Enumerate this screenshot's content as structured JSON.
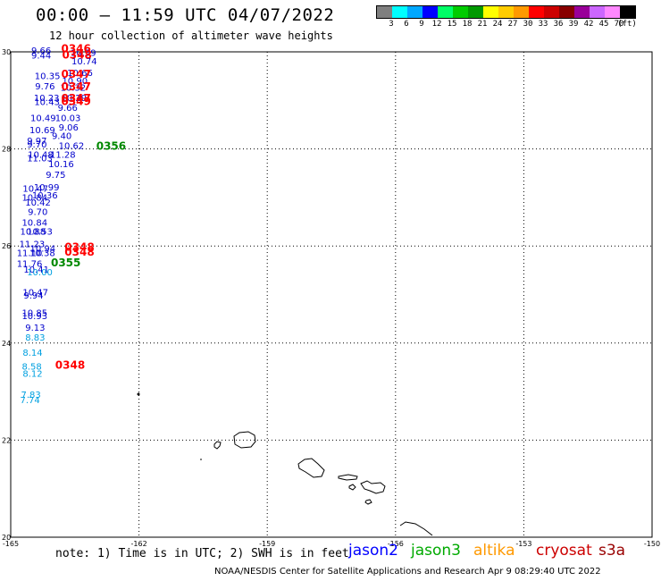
{
  "title": "00:00 – 11:59 UTC 04/07/2022",
  "subtitle": "12 hour collection of altimeter wave heights",
  "legend": {
    "colors": [
      "#7f7f7f",
      "#00ffff",
      "#00a8ff",
      "#0000ff",
      "#00ff66",
      "#00cc00",
      "#009900",
      "#ffff00",
      "#ffcc00",
      "#ff9900",
      "#ff0000",
      "#cc0000",
      "#880000",
      "#990099",
      "#cc66ff",
      "#ff88ff",
      "#000000"
    ],
    "labels": [
      "3",
      "6",
      "9",
      "12",
      "15",
      "18",
      "21",
      "24",
      "27",
      "30",
      "33",
      "36",
      "39",
      "42",
      "45",
      "70",
      "(ft)"
    ]
  },
  "map": {
    "lon_min": -165,
    "lon_max": -150,
    "lat_min": 20,
    "lat_max": 30,
    "x_ticks": [
      "-165",
      "-162",
      "-159",
      "-156",
      "-153",
      "-150"
    ],
    "y_ticks": [
      "30",
      "28",
      "26",
      "24",
      "22",
      "20"
    ]
  },
  "wave_obs": [
    {
      "v": "9.66",
      "lon": -164.52,
      "lat": 29.96,
      "c": "#0000cc"
    },
    {
      "v": "9.44",
      "lon": -164.52,
      "lat": 29.86,
      "c": "#0000cc"
    },
    {
      "v": "10.39",
      "lon": -163.6,
      "lat": 29.92,
      "c": "#0000cc"
    },
    {
      "v": "10.74",
      "lon": -163.58,
      "lat": 29.74,
      "c": "#0000cc"
    },
    {
      "v": "10.66",
      "lon": -163.68,
      "lat": 29.5,
      "c": "#0000cc"
    },
    {
      "v": "10.35",
      "lon": -164.44,
      "lat": 29.44,
      "c": "#0000cc"
    },
    {
      "v": "10.90",
      "lon": -163.8,
      "lat": 29.34,
      "c": "#0000cc"
    },
    {
      "v": "9.76",
      "lon": -164.43,
      "lat": 29.23,
      "c": "#0000cc"
    },
    {
      "v": "10.32",
      "lon": -163.84,
      "lat": 29.2,
      "c": "#0000cc"
    },
    {
      "v": "10.23",
      "lon": -164.46,
      "lat": 28.99,
      "c": "#0000cc"
    },
    {
      "v": "10.29",
      "lon": -163.82,
      "lat": 28.99,
      "c": "#0000cc"
    },
    {
      "v": "10.43",
      "lon": -164.45,
      "lat": 28.9,
      "c": "#0000cc"
    },
    {
      "v": "9.66",
      "lon": -163.9,
      "lat": 28.78,
      "c": "#0000cc"
    },
    {
      "v": "10.49",
      "lon": -164.54,
      "lat": 28.57,
      "c": "#0000cc"
    },
    {
      "v": "10.03",
      "lon": -163.96,
      "lat": 28.57,
      "c": "#0000cc"
    },
    {
      "v": "9.06",
      "lon": -163.88,
      "lat": 28.38,
      "c": "#0000cc"
    },
    {
      "v": "10.69",
      "lon": -164.56,
      "lat": 28.32,
      "c": "#0000cc"
    },
    {
      "v": "9.40",
      "lon": -164.04,
      "lat": 28.2,
      "c": "#0000cc"
    },
    {
      "v": "9.97",
      "lon": -164.62,
      "lat": 28.1,
      "c": "#0000cc"
    },
    {
      "v": "9.70",
      "lon": -164.62,
      "lat": 28.03,
      "c": "#0000cc"
    },
    {
      "v": "10.62",
      "lon": -163.88,
      "lat": 28.0,
      "c": "#0000cc"
    },
    {
      "v": "10.48",
      "lon": -164.6,
      "lat": 27.82,
      "c": "#0000cc"
    },
    {
      "v": "11.28",
      "lon": -164.08,
      "lat": 27.82,
      "c": "#0000cc"
    },
    {
      "v": "11.03",
      "lon": -164.62,
      "lat": 27.74,
      "c": "#0000cc"
    },
    {
      "v": "10.16",
      "lon": -164.12,
      "lat": 27.62,
      "c": "#0000cc"
    },
    {
      "v": "9.75",
      "lon": -164.18,
      "lat": 27.4,
      "c": "#0000cc"
    },
    {
      "v": "10.99",
      "lon": -164.46,
      "lat": 27.15,
      "c": "#0000cc"
    },
    {
      "v": "10.47",
      "lon": -164.72,
      "lat": 27.12,
      "c": "#0000cc"
    },
    {
      "v": "10.36",
      "lon": -164.5,
      "lat": 26.98,
      "c": "#0000cc"
    },
    {
      "v": "10.84",
      "lon": -164.74,
      "lat": 26.93,
      "c": "#0000cc"
    },
    {
      "v": "10.42",
      "lon": -164.66,
      "lat": 26.83,
      "c": "#0000cc"
    },
    {
      "v": "9.70",
      "lon": -164.6,
      "lat": 26.64,
      "c": "#0000cc"
    },
    {
      "v": "10.84",
      "lon": -164.74,
      "lat": 26.42,
      "c": "#0000cc"
    },
    {
      "v": "10.88",
      "lon": -164.78,
      "lat": 26.23,
      "c": "#0000cc"
    },
    {
      "v": "10.53",
      "lon": -164.62,
      "lat": 26.23,
      "c": "#0000cc"
    },
    {
      "v": "11.23",
      "lon": -164.8,
      "lat": 25.98,
      "c": "#0000cc"
    },
    {
      "v": "10.94",
      "lon": -164.55,
      "lat": 25.88,
      "c": "#0000cc"
    },
    {
      "v": "11.10",
      "lon": -164.86,
      "lat": 25.79,
      "c": "#0000cc"
    },
    {
      "v": "10.38",
      "lon": -164.56,
      "lat": 25.79,
      "c": "#0000cc"
    },
    {
      "v": "11.76",
      "lon": -164.86,
      "lat": 25.57,
      "c": "#0000cc"
    },
    {
      "v": "10.41",
      "lon": -164.7,
      "lat": 25.45,
      "c": "#0000cc"
    },
    {
      "v": "10.00",
      "lon": -164.62,
      "lat": 25.4,
      "c": "#00a0e0"
    },
    {
      "v": "10.47",
      "lon": -164.72,
      "lat": 24.98,
      "c": "#0000cc"
    },
    {
      "v": "9.94",
      "lon": -164.7,
      "lat": 24.92,
      "c": "#0000cc"
    },
    {
      "v": "10.85",
      "lon": -164.74,
      "lat": 24.56,
      "c": "#0000cc"
    },
    {
      "v": "10.93",
      "lon": -164.74,
      "lat": 24.49,
      "c": "#0000cc"
    },
    {
      "v": "9.13",
      "lon": -164.66,
      "lat": 24.25,
      "c": "#0000cc"
    },
    {
      "v": "8.83",
      "lon": -164.66,
      "lat": 24.05,
      "c": "#00a0e0"
    },
    {
      "v": "8.14",
      "lon": -164.72,
      "lat": 23.74,
      "c": "#00a0e0"
    },
    {
      "v": "8.58",
      "lon": -164.74,
      "lat": 23.45,
      "c": "#00a0e0"
    },
    {
      "v": "8.12",
      "lon": -164.72,
      "lat": 23.31,
      "c": "#00a0e0"
    },
    {
      "v": "7.83",
      "lon": -164.76,
      "lat": 22.87,
      "c": "#00a0e0"
    },
    {
      "v": "7.74",
      "lon": -164.78,
      "lat": 22.76,
      "c": "#00a0e0"
    }
  ],
  "time_labels": [
    {
      "t": "0346",
      "lon": -163.82,
      "lat": 29.99,
      "c": "#ff0000"
    },
    {
      "t": "0348",
      "lon": -163.8,
      "lat": 29.86,
      "c": "#ff0000"
    },
    {
      "t": "0347",
      "lon": -163.82,
      "lat": 29.47,
      "c": "#ff0000"
    },
    {
      "t": "0347",
      "lon": -163.82,
      "lat": 29.21,
      "c": "#ff0000"
    },
    {
      "t": "0347",
      "lon": -163.82,
      "lat": 28.97,
      "c": "#ff0000"
    },
    {
      "t": "0349",
      "lon": -163.82,
      "lat": 28.9,
      "c": "#ff0000"
    },
    {
      "t": "0356",
      "lon": -163.0,
      "lat": 27.98,
      "c": "#008800"
    },
    {
      "t": "0348",
      "lon": -163.74,
      "lat": 25.9,
      "c": "#ff0000"
    },
    {
      "t": "0348",
      "lon": -163.74,
      "lat": 25.8,
      "c": "#ff0000"
    },
    {
      "t": "0355",
      "lon": -164.06,
      "lat": 25.58,
      "c": "#008800"
    },
    {
      "t": "0348",
      "lon": -163.96,
      "lat": 23.47,
      "c": "#ff0000"
    }
  ],
  "note": "note: 1) Time is in UTC; 2) SWH is in feet",
  "satellites": [
    {
      "name": "jason2",
      "color": "#0000ff"
    },
    {
      "name": "jason3",
      "color": "#00aa00"
    },
    {
      "name": "altika",
      "color": "#ff9900"
    },
    {
      "name": "cryosat",
      "color": "#cc0000"
    },
    {
      "name": "s3a",
      "color": "#990000"
    }
  ],
  "credit": "NOAA/NESDIS Center for Satellite Applications and Research   Apr  9 08:29:40 UTC 2022"
}
